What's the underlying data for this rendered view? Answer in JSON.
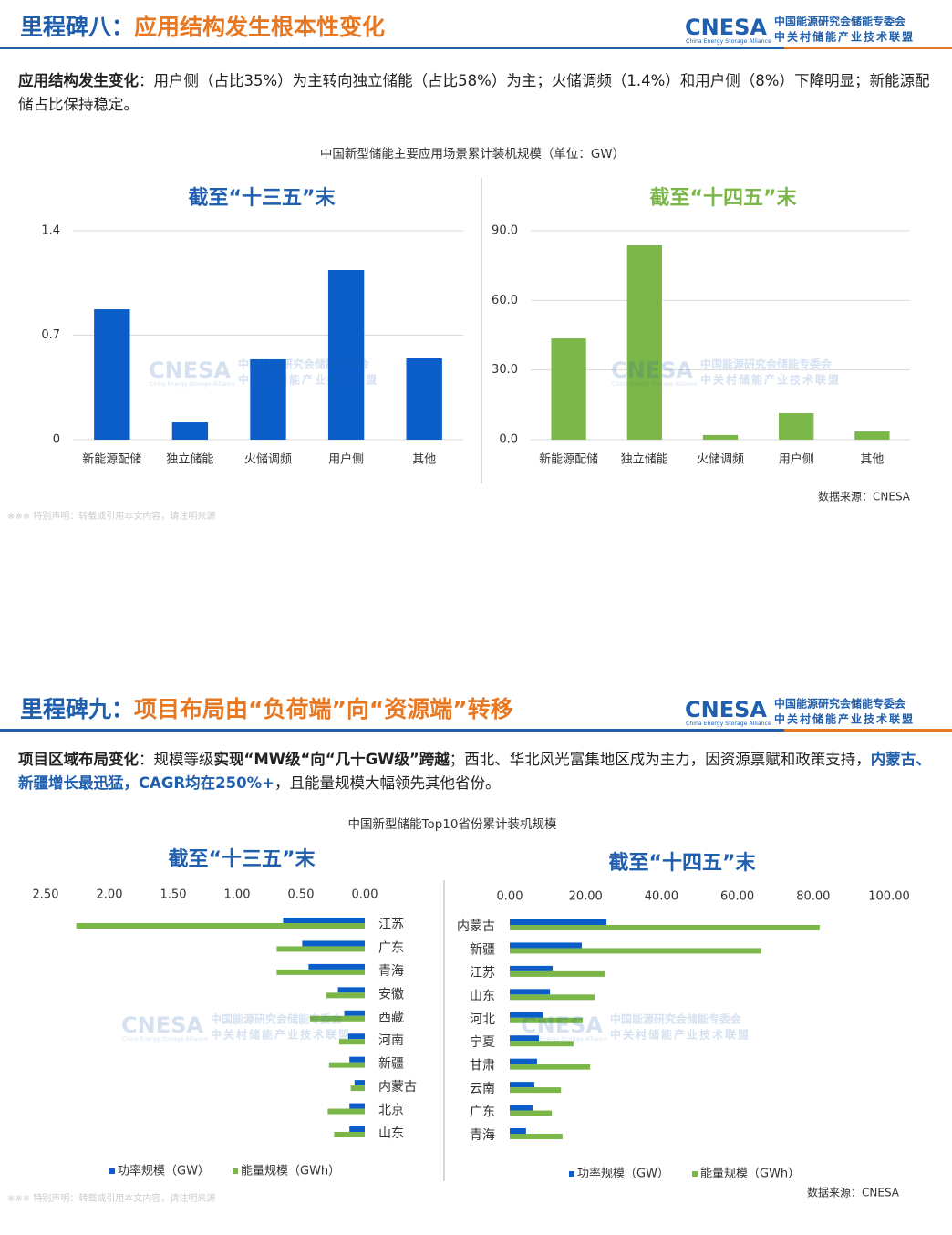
{
  "logo": {
    "name": "CNESA",
    "english": "China Energy Storage Alliance",
    "line1": "中国能源研究会储能专委会",
    "line2": "中关村储能产业技术联盟"
  },
  "disclaimer": "※※※ 特别声明：转载或引用本文内容，请注明来源",
  "slides": [
    {
      "title_lead": "里程碑八：",
      "title": "应用结构发生根本性变化",
      "body": [
        {
          "text": "应用结构发生变化",
          "style": "bold"
        },
        {
          "text": "：用户侧（占比35%）为主转向独立储能（占比58%）为主；火储调频（1.4%）和用户侧（8%）下降明显；新能源配储占比保持稳定。",
          "style": "plain"
        }
      ],
      "chart_caption": "中国新型储能主要应用场景累计装机规模（单位：GW）",
      "source": "数据来源：CNESA"
    },
    {
      "title_lead": "里程碑九：",
      "title": "项目布局由“负荷端”向“资源端”转移",
      "body": [
        {
          "text": "项目区域布局变化",
          "style": "bold"
        },
        {
          "text": "：规模等级",
          "style": "plain"
        },
        {
          "text": "实现“MW级“向“几十GW级”跨越",
          "style": "bold"
        },
        {
          "text": "；西北、华北风光富集地区成为主力，因资源禀赋和政策支持，",
          "style": "plain"
        },
        {
          "text": "内蒙古、新疆增长最迅猛，CAGR均在250%+",
          "style": "blue-bold"
        },
        {
          "text": "，且能量规模大幅领先其他省份。",
          "style": "plain"
        }
      ],
      "chart_caption": "中国新型储能Top10省份累计装机规模",
      "source": "数据来源：CNESA"
    }
  ],
  "chart_data": [
    {
      "type": "bar",
      "title": "截至“十三五”末",
      "title_color": "#1f5fae",
      "categories": [
        "新能源配储",
        "独立储能",
        "火储调频",
        "用户侧",
        "其他"
      ],
      "values": [
        0.874,
        0.116,
        0.538,
        1.137,
        0.544
      ],
      "color": "#0b5ec9",
      "ylim": [
        0,
        1.4
      ],
      "yticks": [
        0,
        0.7,
        1.4
      ],
      "grid": true
    },
    {
      "type": "bar",
      "title": "截至“十四五”末",
      "title_color": "#7ab648",
      "categories": [
        "新能源配储",
        "独立储能",
        "火储调频",
        "用户侧",
        "其他"
      ],
      "values": [
        43.6,
        83.7,
        2.0,
        11.4,
        3.5
      ],
      "color": "#7ab648",
      "ylim": [
        0,
        90
      ],
      "yticks": [
        {
          "value": 0,
          "label": "0.0"
        },
        {
          "value": 30,
          "label": "30.0"
        },
        {
          "value": 60,
          "label": "60.0"
        },
        {
          "value": 90,
          "label": "90.0"
        }
      ],
      "grid": true
    },
    {
      "type": "hbar",
      "title": "截至“十三五”末",
      "title_color": "#1f5fae",
      "categories": [
        "江苏",
        "广东",
        "青海",
        "安徽",
        "西藏",
        "河南",
        "新疆",
        "内蒙古",
        "北京",
        "山东"
      ],
      "series": [
        {
          "name": "功率规模（GW）",
          "color": "#0b5ec9",
          "values": [
            0.64,
            0.49,
            0.44,
            0.21,
            0.16,
            0.13,
            0.12,
            0.08,
            0.12,
            0.12
          ]
        },
        {
          "name": "能量规模（GWh）",
          "color": "#7ab648",
          "values": [
            2.26,
            0.69,
            0.69,
            0.3,
            0.43,
            0.2,
            0.28,
            0.11,
            0.29,
            0.24
          ]
        }
      ],
      "xlim": [
        2.5,
        0
      ],
      "xticks": [
        {
          "value": 2.5,
          "label": "2.50"
        },
        {
          "value": 2,
          "label": "2.00"
        },
        {
          "value": 1.5,
          "label": "1.50"
        },
        {
          "value": 1,
          "label": "1.00"
        },
        {
          "value": 0.5,
          "label": "0.50"
        },
        {
          "value": 0,
          "label": "0.00"
        }
      ],
      "legend": "bottom"
    },
    {
      "type": "hbar",
      "title": "截至“十四五”末",
      "title_color": "#1f5fae",
      "categories": [
        "内蒙古",
        "新疆",
        "江苏",
        "山东",
        "河北",
        "宁夏",
        "甘肃",
        "云南",
        "广东",
        "青海"
      ],
      "series": [
        {
          "name": "功率规模（GW）",
          "color": "#0b5ec9",
          "values": [
            25.5,
            19.0,
            11.3,
            10.6,
            8.9,
            7.7,
            7.2,
            6.5,
            6.0,
            4.3
          ]
        },
        {
          "name": "能量规模（GWh）",
          "color": "#7ab648",
          "values": [
            81.7,
            66.3,
            25.2,
            22.4,
            19.2,
            16.8,
            21.2,
            13.5,
            11.1,
            13.9
          ]
        }
      ],
      "xlim": [
        0,
        100
      ],
      "xticks": [
        {
          "value": 0,
          "label": "0.00"
        },
        {
          "value": 20,
          "label": "20.00"
        },
        {
          "value": 40,
          "label": "40.00"
        },
        {
          "value": 60,
          "label": "60.00"
        },
        {
          "value": 80,
          "label": "80.00"
        },
        {
          "value": 100,
          "label": "100.00"
        }
      ],
      "legend": "bottom"
    }
  ]
}
